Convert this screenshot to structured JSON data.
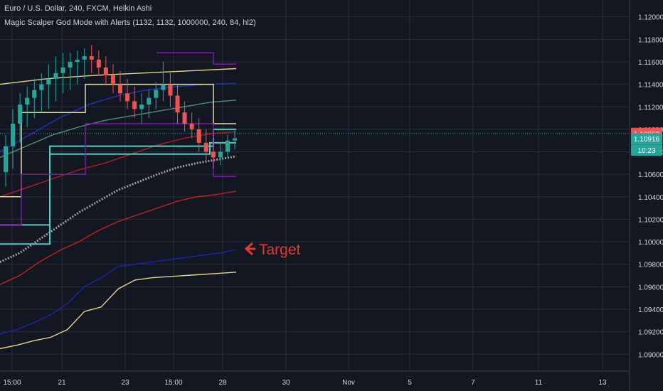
{
  "legend": {
    "symbol_line": "Euro / U.S. Dollar, 240, FXCM, Heikin Ashi",
    "indicator_line": "Magic Scalper God Mode with Alerts (1132, 1132, 1000000, 240, 84, hl2)"
  },
  "annotation": {
    "text": "Target",
    "color": "#e53935"
  },
  "price_scale": {
    "ticks": [
      "1.12000",
      "1.11800",
      "1.11600",
      "1.11400",
      "1.11200",
      "1.11000",
      "1.10800",
      "1.10600",
      "1.10400",
      "1.10200",
      "1.10000",
      "1.09800",
      "1.09600",
      "1.09400",
      "1.09200",
      "1.09000"
    ],
    "last_price": "1.10963",
    "last_price_color": "#ef5350",
    "current_price": "1.10916",
    "current_price_color": "#26a69a",
    "countdown": "10:23"
  },
  "time_scale": {
    "labels": [
      "15:00",
      "21",
      "23",
      "15:00",
      "28",
      "30",
      "Nov",
      "5",
      "7",
      "11",
      "13"
    ]
  },
  "colors": {
    "background": "#131722",
    "grid": "#2a2e39",
    "up_candle": "#26a69a",
    "down_candle": "#ef5350",
    "axis_text": "#d1d4dc"
  },
  "chart_data": {
    "type": "candlestick",
    "ylim": [
      1.0885,
      1.1215
    ],
    "y_ticks": [
      1.12,
      1.118,
      1.116,
      1.114,
      1.112,
      1.11,
      1.108,
      1.106,
      1.104,
      1.102,
      1.1,
      1.098,
      1.096,
      1.094,
      1.092,
      1.09
    ],
    "candles": [
      [
        1.1062,
        1.1095,
        1.1049,
        1.1085
      ],
      [
        1.1085,
        1.1118,
        1.1065,
        1.1105
      ],
      [
        1.1105,
        1.1132,
        1.1088,
        1.1122
      ],
      [
        1.1122,
        1.1138,
        1.1102,
        1.1128
      ],
      [
        1.1128,
        1.1145,
        1.111,
        1.1135
      ],
      [
        1.1135,
        1.115,
        1.1115,
        1.114
      ],
      [
        1.114,
        1.1158,
        1.1118,
        1.1145
      ],
      [
        1.1145,
        1.1165,
        1.1125,
        1.115
      ],
      [
        1.115,
        1.1168,
        1.1132,
        1.1155
      ],
      [
        1.1155,
        1.1168,
        1.1135,
        1.116
      ],
      [
        1.116,
        1.117,
        1.114,
        1.1162
      ],
      [
        1.1162,
        1.1172,
        1.1145,
        1.1165
      ],
      [
        1.1165,
        1.1175,
        1.115,
        1.1162
      ],
      [
        1.1162,
        1.117,
        1.1148,
        1.1155
      ],
      [
        1.1155,
        1.1165,
        1.114,
        1.1148
      ],
      [
        1.1148,
        1.1158,
        1.1132,
        1.114
      ],
      [
        1.114,
        1.1152,
        1.1125,
        1.1132
      ],
      [
        1.1132,
        1.1145,
        1.1118,
        1.1125
      ],
      [
        1.1125,
        1.1138,
        1.111,
        1.1118
      ],
      [
        1.1118,
        1.1132,
        1.1105,
        1.1122
      ],
      [
        1.1122,
        1.1135,
        1.111,
        1.1128
      ],
      [
        1.1128,
        1.1142,
        1.1118,
        1.1135
      ],
      [
        1.1135,
        1.116,
        1.1125,
        1.114
      ],
      [
        1.114,
        1.115,
        1.112,
        1.113
      ],
      [
        1.113,
        1.114,
        1.1105,
        1.1115
      ],
      [
        1.1115,
        1.1125,
        1.1098,
        1.1105
      ],
      [
        1.1105,
        1.1115,
        1.1092,
        1.11
      ],
      [
        1.11,
        1.111,
        1.108,
        1.1088
      ],
      [
        1.1088,
        1.11,
        1.107,
        1.108
      ],
      [
        1.108,
        1.1092,
        1.1065,
        1.1075
      ],
      [
        1.1075,
        1.1088,
        1.1068,
        1.108
      ],
      [
        1.108,
        1.1095,
        1.1075,
        1.109
      ],
      [
        1.109,
        1.11,
        1.1082,
        1.1092
      ]
    ],
    "lines": [
      {
        "name": "",
        "color": "#e6d48a",
        "values": [
          1.0905,
          1.0908,
          1.0912,
          1.0915,
          1.0922,
          1.0938,
          1.0942,
          1.0958,
          1.0966,
          1.0968,
          1.0969,
          1.097,
          1.0971,
          1.0972,
          1.0973
        ]
      },
      {
        "name": "",
        "color": "#1e22b4",
        "values": [
          1.0918,
          1.0922,
          1.0928,
          1.0935,
          1.0945,
          1.096,
          1.0968,
          1.0978,
          1.098,
          1.0982,
          1.0984,
          1.0986,
          1.0988,
          1.099,
          1.0993
        ]
      },
      {
        "name": "",
        "color": "#cc1f1f",
        "values": [
          1.0962,
          1.097,
          1.0982,
          1.0992,
          1.1,
          1.101,
          1.1018,
          1.1024,
          1.103,
          1.1036,
          1.104,
          1.1042,
          1.1045
        ]
      },
      {
        "name": "",
        "color": "#9a9ea8",
        "values": [
          1.0982,
          1.099,
          1.1002,
          1.1014,
          1.1026,
          1.1036,
          1.1046,
          1.1053,
          1.106,
          1.1066,
          1.107,
          1.1073,
          1.1076
        ]
      },
      {
        "name": "",
        "color": "#b71c1c",
        "values": [
          1.104,
          1.1048,
          1.1056,
          1.1064,
          1.107,
          1.1078,
          1.1086,
          1.1092,
          1.1096,
          1.1098
        ]
      },
      {
        "name": "",
        "color": "#4a8f7a",
        "values": [
          1.1075,
          1.1085,
          1.1095,
          1.1102,
          1.1108,
          1.1112,
          1.1116,
          1.112,
          1.1124,
          1.1126
        ]
      },
      {
        "name": "",
        "color": "#1f33cc",
        "values": [
          1.108,
          1.1095,
          1.111,
          1.1122,
          1.113,
          1.1135,
          1.1138,
          1.114,
          1.1141
        ]
      },
      {
        "name": "",
        "color": "#e6d48a",
        "values": [
          1.114,
          1.1145,
          1.1148,
          1.115,
          1.1152,
          1.1154
        ]
      }
    ]
  }
}
